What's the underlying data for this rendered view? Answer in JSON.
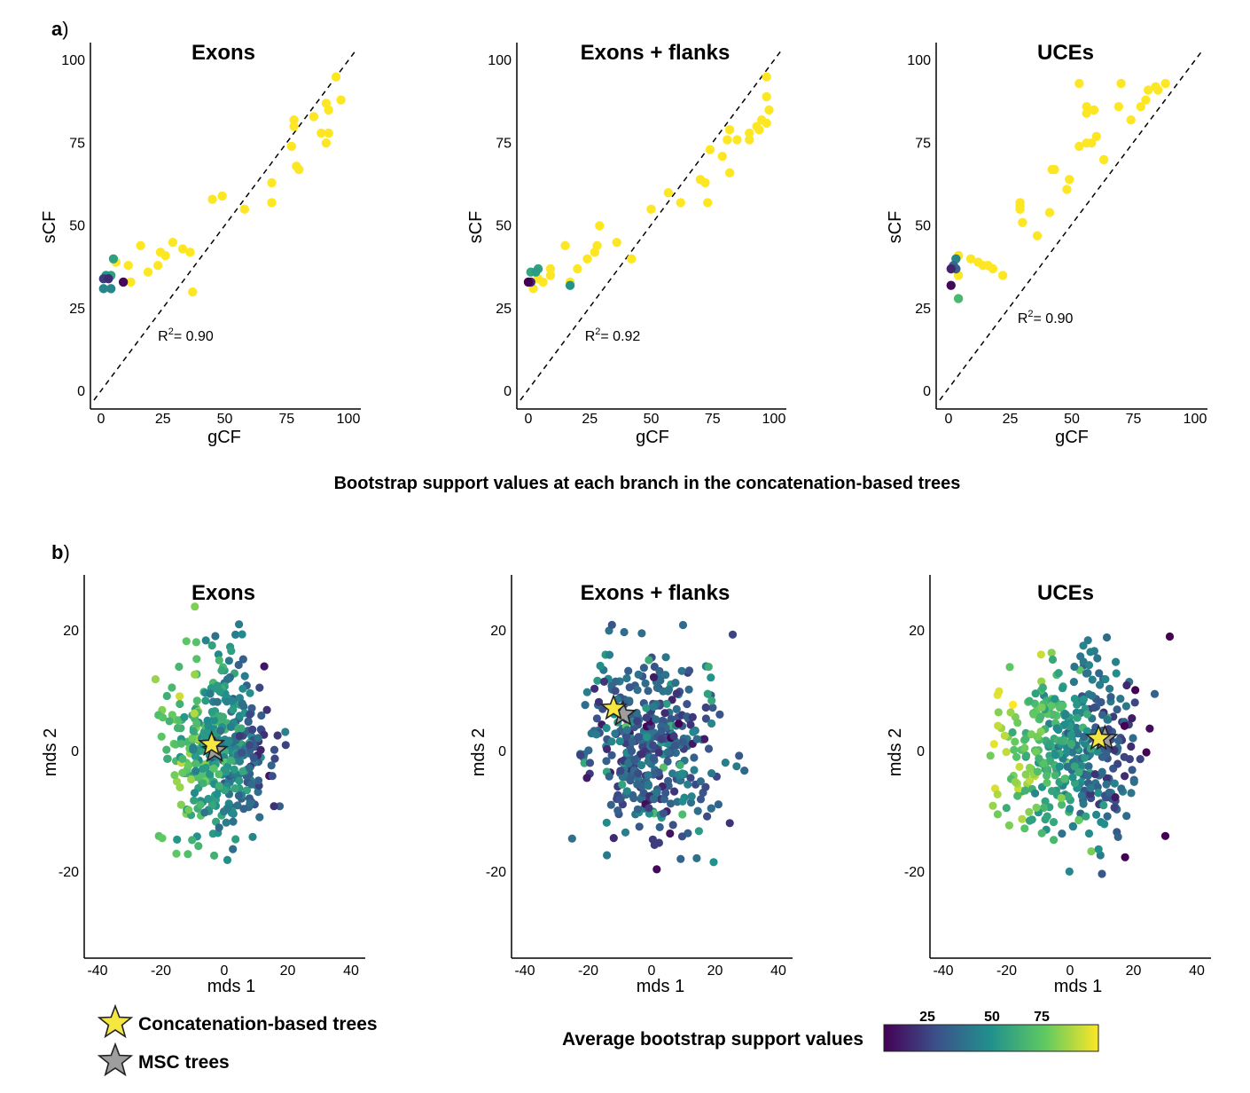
{
  "panel_a": {
    "letter": "a",
    "paren": ")"
  },
  "panel_b": {
    "letter": "b",
    "paren": ")"
  },
  "caption_a": "Bootstrap support values at each branch in the concatenation-based trees",
  "legend": {
    "concat_label": "Concatenation-based trees",
    "msc_label": "MSC trees",
    "colorbar_label": "Average bootstrap support values",
    "colorbar_ticks": [
      "25",
      "50",
      "75"
    ],
    "concat_color": "#f5e642",
    "msc_color": "#9e9e9e"
  },
  "colormap": [
    "#440154",
    "#3b528b",
    "#21918c",
    "#5ec962",
    "#fde725"
  ],
  "chart_data": [
    {
      "type": "scatter",
      "title": "Exons",
      "xlabel": "gCF",
      "ylabel": "sCF",
      "xlim": [
        0,
        100
      ],
      "ylim": [
        0,
        100
      ],
      "xticks": [
        0,
        25,
        50,
        75,
        100
      ],
      "yticks": [
        0,
        25,
        50,
        75,
        100
      ],
      "annotation": {
        "prefix": "R",
        "sup": "2",
        "text": "= 0.90"
      },
      "reference_line": "y = x (dashed)",
      "points": [
        [
          95,
          95
        ],
        [
          97,
          88
        ],
        [
          78,
          82
        ],
        [
          78,
          80
        ],
        [
          86,
          83
        ],
        [
          91,
          87
        ],
        [
          92,
          85
        ],
        [
          89,
          78
        ],
        [
          92,
          78
        ],
        [
          91,
          75
        ],
        [
          77,
          74
        ],
        [
          79,
          68
        ],
        [
          80,
          67
        ],
        [
          69,
          63
        ],
        [
          69,
          57
        ],
        [
          58,
          55
        ],
        [
          49,
          59
        ],
        [
          45,
          58
        ],
        [
          16,
          44
        ],
        [
          29,
          45
        ],
        [
          33,
          43
        ],
        [
          36,
          42
        ],
        [
          26,
          41
        ],
        [
          24,
          42
        ],
        [
          23,
          38
        ],
        [
          19,
          36
        ],
        [
          12,
          33
        ],
        [
          37,
          30
        ],
        [
          11,
          38
        ],
        [
          6,
          39
        ],
        [
          4,
          35
        ],
        [
          5,
          40
        ],
        [
          2,
          35
        ],
        [
          4,
          31
        ],
        [
          1,
          31
        ],
        [
          1,
          34
        ],
        [
          3,
          34
        ],
        [
          9,
          33
        ]
      ],
      "values": [
        100,
        100,
        100,
        100,
        100,
        100,
        100,
        100,
        100,
        100,
        100,
        100,
        100,
        100,
        100,
        100,
        100,
        100,
        100,
        100,
        100,
        100,
        100,
        100,
        100,
        100,
        100,
        100,
        100,
        100,
        60,
        60,
        55,
        50,
        50,
        25,
        20,
        10
      ]
    },
    {
      "type": "scatter",
      "title": "Exons + flanks",
      "xlabel": "gCF",
      "ylabel": "sCF",
      "xlim": [
        0,
        100
      ],
      "ylim": [
        0,
        100
      ],
      "xticks": [
        0,
        25,
        50,
        75,
        100
      ],
      "yticks": [
        0,
        25,
        50,
        75,
        100
      ],
      "annotation": {
        "prefix": "R",
        "sup": "2",
        "text": "= 0.92"
      },
      "reference_line": "y = x (dashed)",
      "points": [
        [
          97,
          95
        ],
        [
          97,
          89
        ],
        [
          98,
          85
        ],
        [
          95,
          82
        ],
        [
          97,
          81
        ],
        [
          94,
          79
        ],
        [
          93,
          80
        ],
        [
          90,
          76
        ],
        [
          90,
          78
        ],
        [
          82,
          79
        ],
        [
          81,
          76
        ],
        [
          85,
          76
        ],
        [
          79,
          71
        ],
        [
          74,
          73
        ],
        [
          70,
          64
        ],
        [
          72,
          63
        ],
        [
          82,
          66
        ],
        [
          73,
          57
        ],
        [
          62,
          57
        ],
        [
          57,
          60
        ],
        [
          50,
          55
        ],
        [
          42,
          40
        ],
        [
          36,
          45
        ],
        [
          29,
          50
        ],
        [
          28,
          44
        ],
        [
          27,
          42
        ],
        [
          24,
          40
        ],
        [
          20,
          37
        ],
        [
          15,
          44
        ],
        [
          17,
          33
        ],
        [
          9,
          35
        ],
        [
          9,
          37
        ],
        [
          6,
          33
        ],
        [
          4,
          34
        ],
        [
          2,
          31
        ],
        [
          1,
          36
        ],
        [
          4,
          37
        ],
        [
          3,
          36
        ],
        [
          17,
          32
        ],
        [
          1,
          33
        ],
        [
          0,
          33
        ]
      ],
      "values": [
        100,
        100,
        100,
        100,
        100,
        100,
        100,
        100,
        100,
        100,
        100,
        100,
        100,
        100,
        100,
        100,
        100,
        100,
        100,
        100,
        100,
        100,
        100,
        100,
        100,
        100,
        100,
        100,
        100,
        100,
        100,
        100,
        100,
        100,
        100,
        62,
        60,
        58,
        55,
        20,
        8
      ]
    },
    {
      "type": "scatter",
      "title": "UCEs",
      "xlabel": "gCF",
      "ylabel": "sCF",
      "xlim": [
        0,
        100
      ],
      "ylim": [
        0,
        100
      ],
      "xticks": [
        0,
        25,
        50,
        75,
        100
      ],
      "yticks": [
        0,
        25,
        50,
        75,
        100
      ],
      "annotation": {
        "prefix": "R",
        "sup": "2",
        "text": "= 0.90"
      },
      "reference_line": "y = x (dashed)",
      "points": [
        [
          70,
          93
        ],
        [
          88,
          93
        ],
        [
          85,
          91
        ],
        [
          84,
          92
        ],
        [
          81,
          91
        ],
        [
          80,
          88
        ],
        [
          78,
          86
        ],
        [
          74,
          82
        ],
        [
          69,
          86
        ],
        [
          53,
          93
        ],
        [
          56,
          86
        ],
        [
          59,
          85
        ],
        [
          56,
          84
        ],
        [
          60,
          77
        ],
        [
          56,
          75
        ],
        [
          58,
          75
        ],
        [
          53,
          74
        ],
        [
          63,
          70
        ],
        [
          49,
          64
        ],
        [
          48,
          61
        ],
        [
          43,
          67
        ],
        [
          42,
          67
        ],
        [
          41,
          54
        ],
        [
          36,
          47
        ],
        [
          29,
          57
        ],
        [
          29,
          56
        ],
        [
          29,
          55
        ],
        [
          30,
          51
        ],
        [
          22,
          35
        ],
        [
          18,
          37
        ],
        [
          16,
          38
        ],
        [
          14,
          38
        ],
        [
          12,
          39
        ],
        [
          9,
          40
        ],
        [
          4,
          41
        ],
        [
          4,
          35
        ],
        [
          3,
          40
        ],
        [
          2,
          38
        ],
        [
          3,
          37
        ],
        [
          1,
          37
        ],
        [
          4,
          28
        ],
        [
          1,
          32
        ]
      ],
      "values": [
        100,
        100,
        100,
        100,
        100,
        100,
        100,
        100,
        100,
        100,
        100,
        100,
        100,
        100,
        100,
        100,
        100,
        100,
        100,
        100,
        100,
        100,
        100,
        100,
        100,
        100,
        100,
        100,
        100,
        100,
        100,
        100,
        100,
        100,
        100,
        100,
        50,
        40,
        35,
        18,
        70,
        10
      ]
    },
    {
      "type": "scatter",
      "title": "Exons",
      "xlabel": "mds 1",
      "ylabel": "mds 2",
      "xlim": [
        -40,
        40
      ],
      "ylim": [
        -30,
        28
      ],
      "xticks": [
        -40,
        -20,
        0,
        20,
        40
      ],
      "yticks": [
        -20,
        0,
        20
      ],
      "concatenation_tree": [
        -4,
        1
      ],
      "msc_tree": [
        -3,
        0
      ],
      "cluster": {
        "cx": -2,
        "cy": 0,
        "sx": 8,
        "sy": 7.5,
        "n": 420,
        "green_side": "left"
      }
    },
    {
      "type": "scatter",
      "title": "Exons + flanks",
      "xlabel": "mds 1",
      "ylabel": "mds 2",
      "xlim": [
        -40,
        40
      ],
      "ylim": [
        -30,
        28
      ],
      "xticks": [
        -40,
        -20,
        0,
        20,
        40
      ],
      "yticks": [
        -20,
        0,
        20
      ],
      "concatenation_tree": [
        -12,
        7
      ],
      "msc_tree": [
        -9,
        6
      ],
      "cluster": {
        "cx": 0,
        "cy": 0,
        "sx": 10,
        "sy": 8,
        "n": 400,
        "green_side": "none"
      }
    },
    {
      "type": "scatter",
      "title": "UCEs",
      "xlabel": "mds 1",
      "ylabel": "mds 2",
      "xlim": [
        -40,
        40
      ],
      "ylim": [
        -30,
        28
      ],
      "xticks": [
        -40,
        -20,
        0,
        20,
        40
      ],
      "yticks": [
        -20,
        0,
        20
      ],
      "concatenation_tree": [
        9,
        2
      ],
      "msc_tree": [
        11,
        2
      ],
      "cluster": {
        "cx": 0,
        "cy": 0,
        "sx": 12,
        "sy": 7.5,
        "n": 420,
        "green_side": "left"
      }
    }
  ]
}
